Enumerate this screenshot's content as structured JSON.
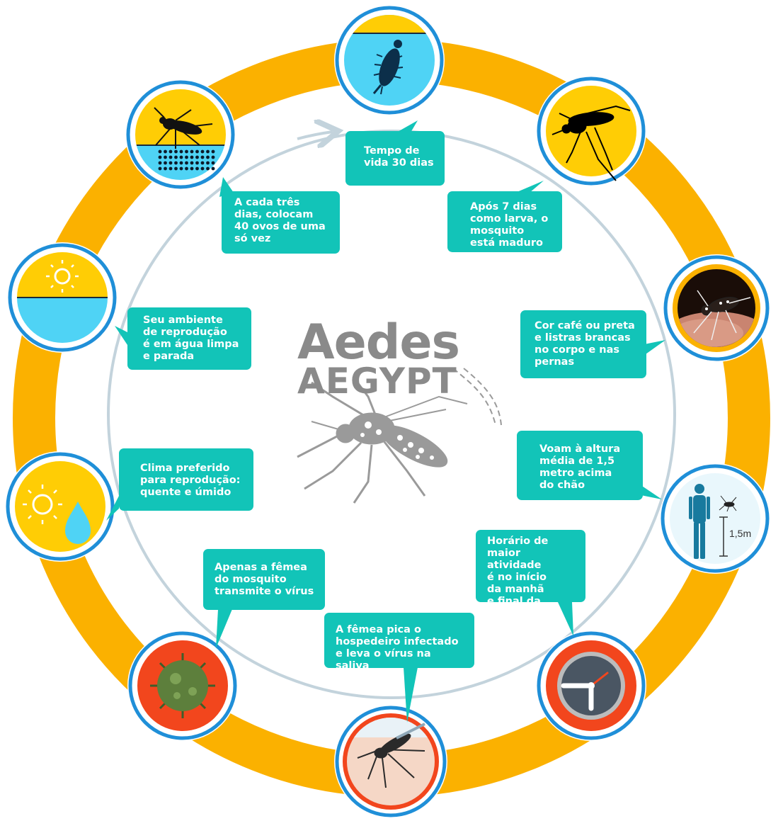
{
  "colors": {
    "ring": "#fbb100",
    "node_border": "#1f8fd8",
    "callout": "#12c4b8",
    "inner_circle": "#c3d3dc",
    "yellow": "#ffcd05",
    "water": "#4fd3f5",
    "title": "#8a8a8a",
    "clock_red": "#f2461d"
  },
  "title": {
    "line1": "Aedes",
    "line2": "AEGYPT"
  },
  "callouts": [
    {
      "id": "lifespan",
      "text": "Tempo de\nvida 30 dias"
    },
    {
      "id": "maturity",
      "text": "Após 7 dias\ncomo larva, o\nmosquito\nestá maduro"
    },
    {
      "id": "color",
      "text": "Cor café ou preta\ne listras brancas\nno corpo e nas\npernas"
    },
    {
      "id": "flight",
      "text": "Voam à altura\nmédia de 1,5\nmetro acima\ndo chão"
    },
    {
      "id": "schedule",
      "text": "Horário de\nmaior atividade\né no início\nda manhã\ne final da tarde"
    },
    {
      "id": "bite",
      "text": "A fêmea pica o\nhospedeiro infectado\ne leva o vírus na saliva"
    },
    {
      "id": "female",
      "text": "Apenas a fêmea\ndo mosquito\ntransmite o vírus"
    },
    {
      "id": "climate",
      "text": "Clima preferido\npara reprodução:\nquente e úmido"
    },
    {
      "id": "habitat",
      "text": "Seu ambiente\nde reprodução\né em água limpa\ne parada"
    },
    {
      "id": "eggs",
      "text": "A cada três\ndias, colocam\n40 ovos de uma\nsó vez"
    }
  ],
  "nodes": [
    {
      "id": "larva",
      "icon": "larva-icon"
    },
    {
      "id": "adult",
      "icon": "mosquito-silhouette-icon"
    },
    {
      "id": "skin",
      "icon": "mosquito-photo-icon"
    },
    {
      "id": "height",
      "icon": "person-height-icon",
      "label": "1,5m"
    },
    {
      "id": "clock",
      "icon": "clock-icon"
    },
    {
      "id": "bite",
      "icon": "biting-mosquito-icon"
    },
    {
      "id": "virus",
      "icon": "virus-icon"
    },
    {
      "id": "climate",
      "icon": "sun-drop-icon"
    },
    {
      "id": "water",
      "icon": "sun-water-icon"
    },
    {
      "id": "eggs",
      "icon": "mosquito-eggs-icon"
    }
  ]
}
